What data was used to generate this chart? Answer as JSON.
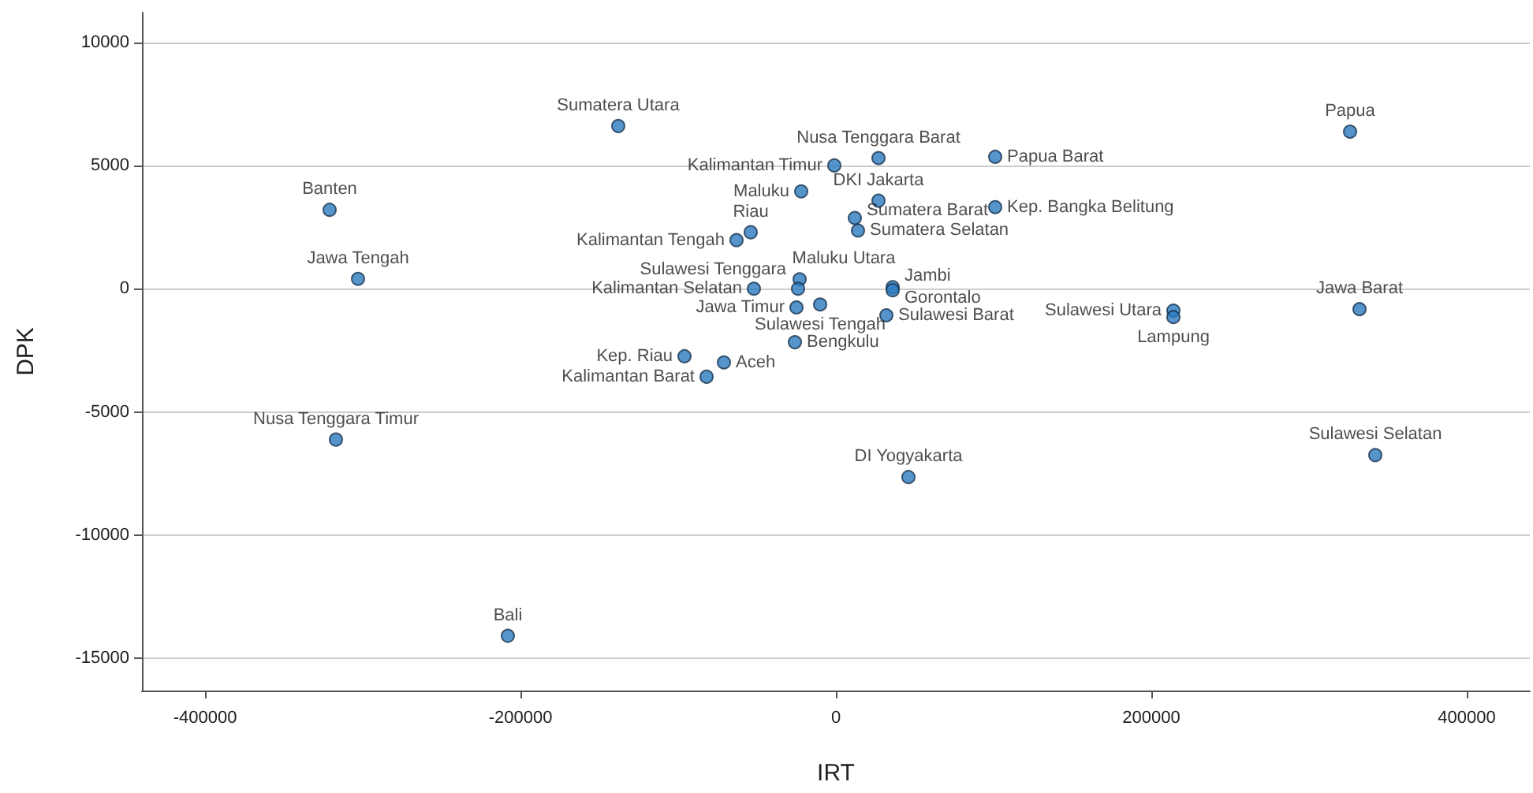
{
  "chart_data": {
    "type": "scatter",
    "xlabel": "IRT",
    "ylabel": "DPK",
    "x": [
      -138000,
      -321000,
      -303000,
      -1000,
      27000,
      -22000,
      27000,
      -54000,
      -63000,
      14000,
      12000,
      101000,
      101000,
      326000,
      -52000,
      -23000,
      -24000,
      -25000,
      -10000,
      36000,
      36000,
      32000,
      214000,
      214000,
      332000,
      -26000,
      -71000,
      -82000,
      -96000,
      -317000,
      46000,
      342000,
      -208000
    ],
    "series": [
      {
        "color": "#2a7bbf",
        "values": [
          6600,
          3200,
          400,
          5000,
          5300,
          3950,
          3570,
          2290,
          1970,
          2360,
          2870,
          5350,
          3310,
          6370,
          0,
          380,
          0,
          -760,
          -640,
          60,
          -60,
          -1080,
          -890,
          -1150,
          -830,
          -2170,
          -2990,
          -3570,
          -2740,
          -6120,
          -7640,
          -6750,
          -14080
        ],
        "value_labels": [
          "Sumatera Utara",
          "Banten",
          "Jawa Tengah",
          "Kalimantan Timur",
          "Nusa Tenggara Barat",
          "Maluku",
          "DKI Jakarta",
          "Riau",
          "Kalimantan Tengah",
          "Sumatera Selatan",
          "Sumatera Barat",
          "Papua Barat",
          "Kep. Bangka Belitung",
          "Papua",
          "Kalimantan Selatan",
          "Maluku Utara",
          "Sulawesi Tenggara",
          "Jawa Timur",
          "Sulawesi Tengah",
          "Jambi",
          "Gorontalo",
          "Sulawesi Barat",
          "Sulawesi Utara",
          "Lampung",
          "Jawa Barat",
          "Bengkulu",
          "Aceh",
          "Kalimantan Barat",
          "Kep. Riau",
          "Nusa Tenggara Timur",
          "DI Yogyakarta",
          "Sulawesi Selatan",
          "Bali"
        ]
      }
    ],
    "xlim": [
      -440000,
      440000
    ],
    "xticks": [
      {
        "value": -400000,
        "label": "-400000"
      },
      {
        "value": -200000,
        "label": "-200000"
      },
      0,
      {
        "value": 200000,
        "label": "200000"
      },
      {
        "value": 400000,
        "label": "400000"
      }
    ],
    "ylim": [
      -16300,
      11200
    ],
    "yticks": [
      {
        "value": -15000,
        "label": "-15000"
      },
      {
        "value": -10000,
        "label": "-10000"
      },
      {
        "value": -5000,
        "label": "-5000"
      },
      0,
      {
        "value": 5000,
        "label": "5000"
      },
      {
        "value": 10000,
        "label": "10000"
      }
    ],
    "grid": "y",
    "marker": "circle"
  }
}
